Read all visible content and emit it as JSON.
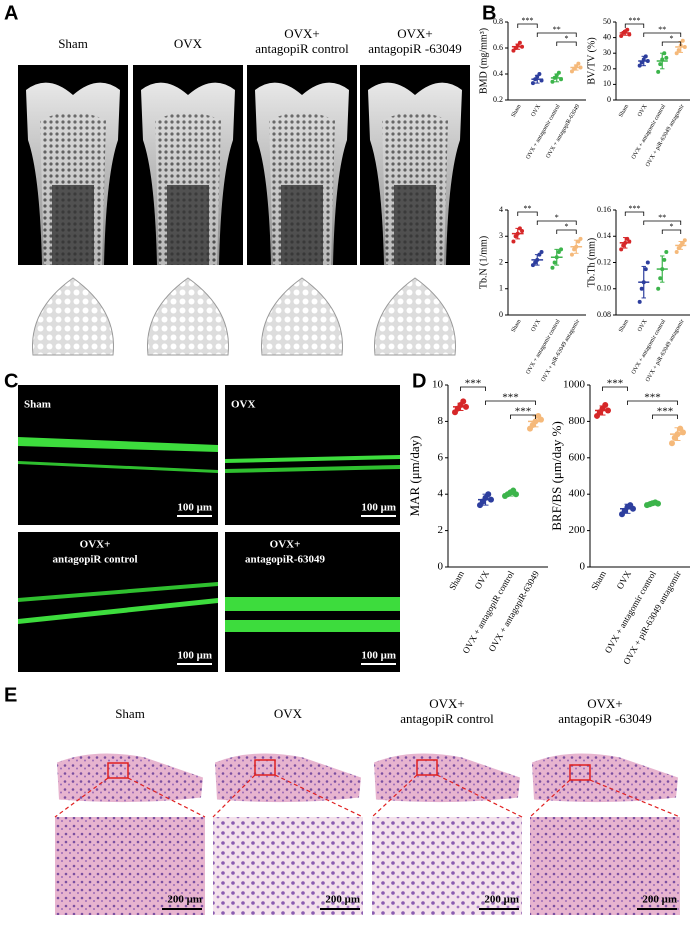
{
  "figure": {
    "panel_a": {
      "letter": "A",
      "columns": [
        [
          "Sham"
        ],
        [
          "OVX"
        ],
        [
          "OVX+",
          "antagopiR control"
        ],
        [
          "OVX+",
          "antagopiR -63049"
        ]
      ]
    },
    "panel_b": {
      "letter": "B"
    },
    "panel_c": {
      "letter": "C",
      "labels": [
        [
          "Sham"
        ],
        [
          "OVX"
        ],
        [
          "OVX+",
          "antagopiR control"
        ],
        [
          "OVX+",
          "antagopiR-63049"
        ]
      ],
      "scale_bar": "100 μm"
    },
    "panel_d": {
      "letter": "D"
    },
    "panel_e": {
      "letter": "E",
      "columns": [
        [
          "Sham"
        ],
        [
          "OVX"
        ],
        [
          "OVX+",
          "antagopiR control"
        ],
        [
          "OVX+",
          "antagopiR -63049"
        ]
      ],
      "scale_bar": "200 μm"
    }
  },
  "chart_data": [
    {
      "type": "scatter",
      "ylabel": "BMD (mg/mm³)",
      "categories": [
        "Sham",
        "OVX",
        "OVX + antagomir control",
        "OVX + antagopiR-63049"
      ],
      "colors": [
        "#d62728",
        "#2d3e9e",
        "#3cb44b",
        "#f5b97a"
      ],
      "values": [
        [
          0.58,
          0.6,
          0.62,
          0.64,
          0.61
        ],
        [
          0.33,
          0.36,
          0.38,
          0.4,
          0.35
        ],
        [
          0.34,
          0.37,
          0.39,
          0.41,
          0.36
        ],
        [
          0.42,
          0.44,
          0.46,
          0.48,
          0.45
        ]
      ],
      "means": [
        0.61,
        0.36,
        0.37,
        0.45
      ],
      "sds": [
        0.02,
        0.03,
        0.03,
        0.02
      ],
      "ylim": [
        0.2,
        0.8
      ],
      "yticks": [
        0.2,
        0.4,
        0.6,
        0.8
      ],
      "significance": [
        {
          "label": "***",
          "groups": [
            0,
            1
          ]
        },
        {
          "label": "**",
          "groups": [
            1,
            3
          ]
        },
        {
          "label": "*",
          "groups": [
            2,
            3
          ]
        }
      ]
    },
    {
      "type": "scatter",
      "ylabel": "BV/TV (%)",
      "categories": [
        "Sham",
        "OVX",
        "OVX + antagomir control",
        "OVX + piR-63049 antagomir"
      ],
      "colors": [
        "#d62728",
        "#2d3e9e",
        "#3cb44b",
        "#f5b97a"
      ],
      "values": [
        [
          41,
          43,
          44,
          45,
          42
        ],
        [
          22,
          24,
          26,
          28,
          25
        ],
        [
          18,
          23,
          26,
          30,
          27
        ],
        [
          30,
          32,
          35,
          38,
          34
        ]
      ],
      "means": [
        43,
        25,
        25,
        34
      ],
      "sds": [
        1.5,
        3,
        5,
        3.5
      ],
      "ylim": [
        0,
        50
      ],
      "yticks": [
        0,
        10,
        20,
        30,
        40,
        50
      ],
      "significance": [
        {
          "label": "***",
          "groups": [
            0,
            1
          ]
        },
        {
          "label": "**",
          "groups": [
            1,
            3
          ]
        },
        {
          "label": "*",
          "groups": [
            2,
            3
          ]
        }
      ]
    },
    {
      "type": "scatter",
      "ylabel": "Tb.N (1/mm)",
      "categories": [
        "Sham",
        "OVX",
        "OVX + antagomir control",
        "OVX + piR-63049 antagomir"
      ],
      "colors": [
        "#d62728",
        "#2d3e9e",
        "#3cb44b",
        "#f5b97a"
      ],
      "values": [
        [
          2.8,
          3.0,
          3.1,
          3.3,
          3.2
        ],
        [
          1.9,
          2.0,
          2.1,
          2.3,
          2.4
        ],
        [
          1.8,
          2.0,
          2.2,
          2.4,
          2.5
        ],
        [
          2.3,
          2.5,
          2.6,
          2.8,
          2.9
        ]
      ],
      "means": [
        3.1,
        2.1,
        2.2,
        2.6
      ],
      "sds": [
        0.2,
        0.2,
        0.3,
        0.25
      ],
      "ylim": [
        0,
        4
      ],
      "yticks": [
        0,
        1,
        2,
        3,
        4
      ],
      "significance": [
        {
          "label": "**",
          "groups": [
            0,
            1
          ]
        },
        {
          "label": "*",
          "groups": [
            1,
            3
          ]
        },
        {
          "label": "*",
          "groups": [
            2,
            3
          ]
        }
      ]
    },
    {
      "type": "scatter",
      "ylabel": "Tb.Th (mm)",
      "categories": [
        "Sham",
        "OVX",
        "OVX + antagomir control",
        "OVX + piR-63049 antagomir"
      ],
      "colors": [
        "#d62728",
        "#2d3e9e",
        "#3cb44b",
        "#f5b97a"
      ],
      "values": [
        [
          0.13,
          0.133,
          0.135,
          0.138,
          0.136
        ],
        [
          0.09,
          0.1,
          0.105,
          0.115,
          0.12
        ],
        [
          0.1,
          0.108,
          0.115,
          0.122,
          0.128
        ],
        [
          0.128,
          0.131,
          0.133,
          0.135,
          0.137
        ]
      ],
      "means": [
        0.135,
        0.105,
        0.115,
        0.133
      ],
      "sds": [
        0.004,
        0.012,
        0.01,
        0.003
      ],
      "ylim": [
        0.08,
        0.16
      ],
      "yticks": [
        0.08,
        {
          "value": 0.1,
          "label": "0.10"
        },
        0.12,
        0.14,
        0.16
      ],
      "significance": [
        {
          "label": "***",
          "groups": [
            0,
            1
          ]
        },
        {
          "label": "**",
          "groups": [
            1,
            3
          ]
        },
        {
          "label": "*",
          "groups": [
            2,
            3
          ]
        }
      ]
    },
    {
      "type": "scatter",
      "ylabel": "MAR (μm/day)",
      "categories": [
        "Sham",
        "OVX",
        "OVX + antagopiR control",
        "OVX + antagopiR-63049"
      ],
      "colors": [
        "#d62728",
        "#2d3e9e",
        "#3cb44b",
        "#f5b97a"
      ],
      "values": [
        [
          8.5,
          8.7,
          8.9,
          9.1,
          8.8
        ],
        [
          3.4,
          3.6,
          3.8,
          4.0,
          3.7
        ],
        [
          3.9,
          4.0,
          4.1,
          4.2,
          4.0
        ],
        [
          7.6,
          7.8,
          8.0,
          8.3,
          8.1
        ]
      ],
      "means": [
        8.8,
        3.7,
        4.0,
        8.0
      ],
      "sds": [
        0.2,
        0.3,
        0.1,
        0.3
      ],
      "ylim": [
        0,
        10
      ],
      "yticks": [
        0,
        2,
        4,
        6,
        8,
        10
      ],
      "significance": [
        {
          "label": "***",
          "groups": [
            0,
            1
          ]
        },
        {
          "label": "***",
          "groups": [
            1,
            3
          ]
        },
        {
          "label": "***",
          "groups": [
            2,
            3
          ]
        }
      ]
    },
    {
      "type": "scatter",
      "ylabel": "BRF/BS (μm/day %)",
      "categories": [
        "Sham",
        "OVX",
        "OVX + antagomir control",
        "OVX + piR-63049 antagomir"
      ],
      "colors": [
        "#d62728",
        "#2d3e9e",
        "#3cb44b",
        "#f5b97a"
      ],
      "values": [
        [
          830,
          850,
          870,
          890,
          860
        ],
        [
          290,
          310,
          330,
          340,
          320
        ],
        [
          340,
          345,
          350,
          355,
          348
        ],
        [
          680,
          710,
          730,
          760,
          740
        ]
      ],
      "means": [
        860,
        320,
        350,
        730
      ],
      "sds": [
        25,
        25,
        10,
        35
      ],
      "ylim": [
        0,
        1000
      ],
      "yticks": [
        0,
        200,
        400,
        600,
        800,
        1000
      ],
      "significance": [
        {
          "label": "***",
          "groups": [
            0,
            1
          ]
        },
        {
          "label": "***",
          "groups": [
            1,
            3
          ]
        },
        {
          "label": "***",
          "groups": [
            2,
            3
          ]
        }
      ]
    }
  ]
}
